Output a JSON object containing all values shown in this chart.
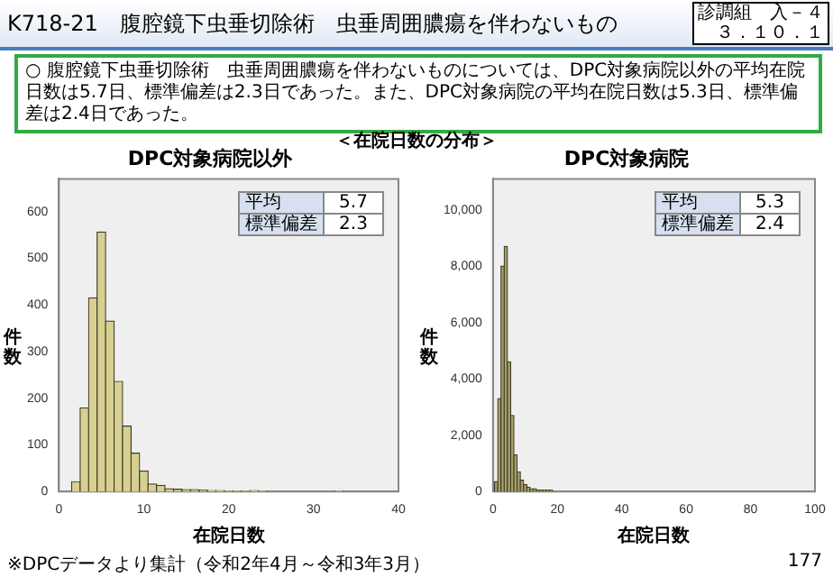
{
  "chart_data": [
    {
      "type": "histogram",
      "title": "DPC対象病院以外",
      "xlabel": "在院日数",
      "ylabel": "件数",
      "color": "#d8d092",
      "bins": [
        1.5,
        2.5,
        3.5,
        4.5,
        5.5,
        6.5,
        7.5,
        8.5,
        9.5,
        10.5,
        11.5,
        12.5,
        13.5,
        14.5,
        15.5,
        16.5,
        17.5,
        18.5,
        19.5,
        20.5,
        21.5,
        22.5,
        23.5,
        24.5,
        25.5,
        26.5,
        27.5,
        28.5,
        29.5,
        30.5,
        31.5,
        32.5,
        33.5
      ],
      "values": [
        21,
        179,
        415,
        556,
        365,
        236,
        140,
        82,
        44,
        16,
        13,
        6,
        5,
        4,
        4,
        3,
        2,
        2,
        1,
        1,
        1,
        2,
        1,
        0,
        0,
        0,
        0,
        0,
        0,
        0,
        0,
        1
      ],
      "xlim": [
        0,
        40
      ],
      "xticks": [
        0,
        10,
        20,
        30,
        40
      ],
      "ylim": [
        0,
        670
      ],
      "yticks": [
        0,
        100,
        200,
        300,
        400,
        500,
        600
      ],
      "grid": false,
      "annotations": [
        "K718-21　腹腔鏡下虫垂切除術　虫垂周囲膿瘍を伴わないもの",
        "診調組　入－４",
        "３．１０．１",
        "○ 腹腔鏡下虫垂切除術　虫垂周囲膿瘍を伴わないものについては、DPC対象病院以外の平均在院日数は5.7日、標準偏差は2.3日であった。また、DPC対象病院の平均在院日数は5.3日、標準偏差は2.4日であった。",
        "＜在院日数の分布＞",
        "※DPCデータより集計（令和2年4月～令和3年3月）",
        "177",
        "平均",
        "5.7",
        "標準偏差",
        "2.3"
      ]
    },
    {
      "type": "histogram",
      "title": "DPC対象病院",
      "xlabel": "在院日数",
      "ylabel": "件数",
      "color": "#a8a068",
      "bins": [
        0.5,
        1.5,
        2.5,
        3.5,
        4.5,
        5.5,
        6.5,
        7.5,
        8.5,
        9.5,
        10.5,
        11.5,
        12.5,
        13.5,
        14.5,
        15.5,
        16.5,
        17.5,
        18.5,
        19.5,
        20.5,
        21.5,
        22.5,
        23.5,
        24.5,
        25.5,
        26.5,
        27.5,
        28.5,
        29.5,
        30.5
      ],
      "values": [
        350,
        3300,
        8000,
        8700,
        4600,
        2700,
        1300,
        700,
        400,
        250,
        150,
        100,
        100,
        50,
        50,
        50,
        50,
        50,
        0,
        0,
        0,
        0,
        0,
        0,
        0,
        0,
        0,
        0,
        0,
        0
      ],
      "xlim": [
        0,
        100
      ],
      "xticks": [
        0,
        20,
        40,
        60,
        80,
        100
      ],
      "ylim": [
        0,
        11100
      ],
      "yticks": [
        0,
        {
          "value": 2000,
          "label": "2,000"
        },
        {
          "value": 4000,
          "label": "4,000"
        },
        {
          "value": 6000,
          "label": "6,000"
        },
        {
          "value": 8000,
          "label": "8,000"
        },
        {
          "value": 10000,
          "label": "10,000"
        }
      ],
      "grid": false,
      "annotations": [
        "平均",
        "5.3",
        "標準偏差",
        "2.4"
      ]
    }
  ]
}
